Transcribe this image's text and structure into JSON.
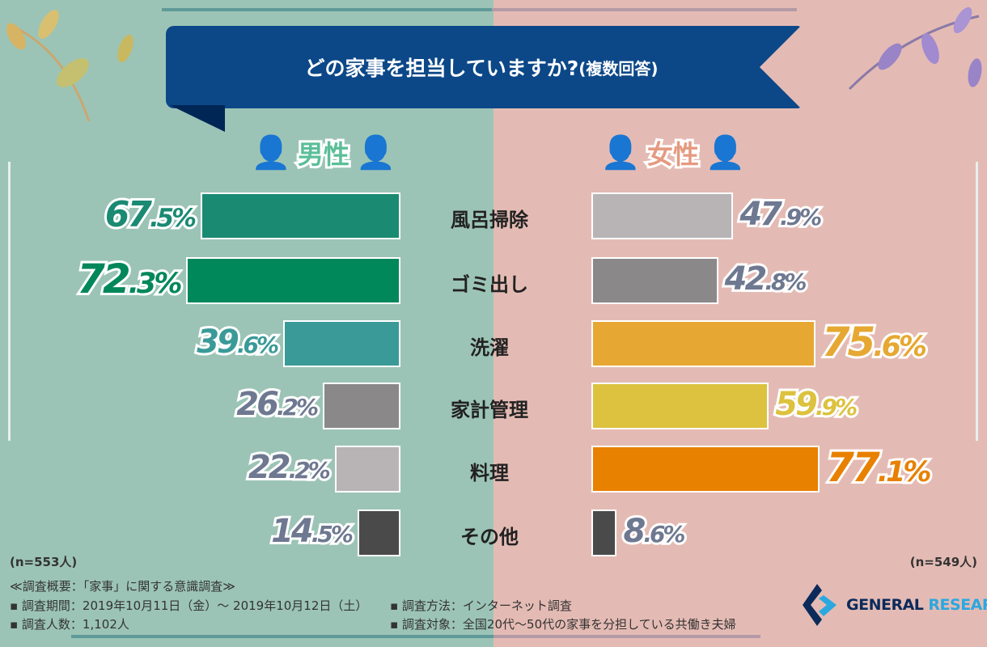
{
  "title": "どの家事を担当していますか?",
  "title_suffix": "(複数回答)",
  "chart_data": {
    "type": "bar",
    "title": "どの家事を担当していますか?(複数回答)",
    "categories": [
      "風呂掃除",
      "ゴミ出し",
      "洗濯",
      "家計管理",
      "料理",
      "その他"
    ],
    "series": [
      {
        "name": "男性",
        "values": [
          67.5,
          72.3,
          39.6,
          26.2,
          22.2,
          14.5
        ],
        "colors": [
          "#1a8a72",
          "#00875a",
          "#3a9a98",
          "#8a8888",
          "#b8b4b6",
          "#4a4a4a"
        ],
        "n": "(n=553人)"
      },
      {
        "name": "女性",
        "values": [
          47.9,
          42.8,
          75.6,
          59.9,
          77.1,
          8.6
        ],
        "colors": [
          "#b8b4b6",
          "#8a8888",
          "#e6a832",
          "#dcc23e",
          "#e88000",
          "#4a4a4a"
        ],
        "n": "(n=549人)"
      }
    ],
    "unit": "%",
    "orientation": "horizontal-butterfly"
  },
  "colors": {
    "male_bg": "#9cc4b6",
    "female_bg": "#e4bbb4",
    "ribbon": "#0c4888",
    "male_accent": "#5bbf98",
    "female_accent": "#e49a80"
  },
  "footer": {
    "heading": "≪調査概要：「家事」に関する意識調査≫",
    "period": "▪ 調査期間：2019年10月11日（金）～ 2019年10月12日（土）",
    "count": "▪ 調査人数：1,102人",
    "method": "▪ 調査方法：インターネット調査",
    "target": "▪ 調査対象：全国20代～50代の家事を分担している共働き夫婦"
  },
  "logo": {
    "word1": "GENERAL",
    "word2": "RESEARCH"
  }
}
